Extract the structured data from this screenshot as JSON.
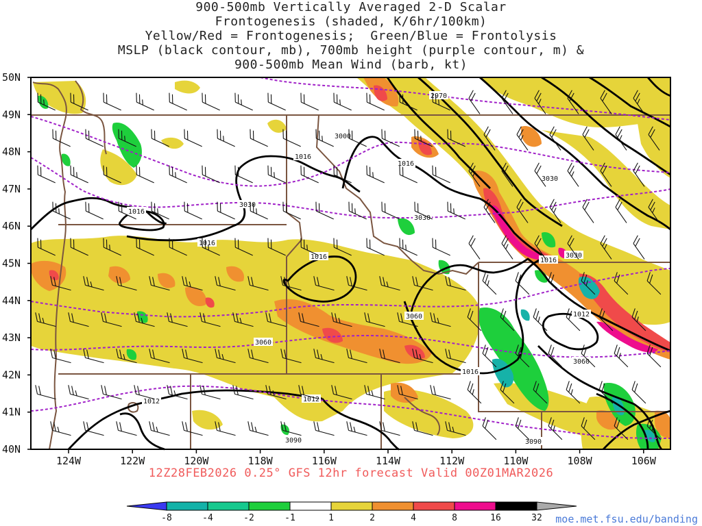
{
  "title_lines": [
    "900-500mb Vertically Averaged 2-D Scalar",
    "Frontogenesis (shaded, K/6hr/100km)",
    "Yellow/Red = Frontogenesis;  Green/Blue = Frontolysis",
    "MSLP (black contour, mb), 700mb height (purple contour, m) &",
    "900-500mb Mean Wind (barb, kt)"
  ],
  "footer": "12Z28FEB2026 0.25° GFS 12hr forecast Valid 00Z01MAR2026",
  "credit": "moe.met.fsu.edu/banding",
  "axes": {
    "lat_labels": [
      "50N",
      "49N",
      "48N",
      "47N",
      "46N",
      "45N",
      "44N",
      "43N",
      "42N",
      "41N",
      "40N"
    ],
    "lon_labels": [
      "124W",
      "122W",
      "120W",
      "118W",
      "116W",
      "114W",
      "112W",
      "110W",
      "108W",
      "106W"
    ]
  },
  "mslp_labels": [
    "1016",
    "1016",
    "1016",
    "1016",
    "1016",
    "1016",
    "1012",
    "1012",
    "1012"
  ],
  "height_labels": [
    "2970",
    "3000",
    "3030",
    "3030",
    "3030",
    "3060",
    "3060",
    "3060",
    "3090",
    "3090"
  ],
  "colorbar": {
    "ticks": [
      "-8",
      "-4",
      "-2",
      "-1",
      "1",
      "2",
      "4",
      "8",
      "16",
      "32"
    ],
    "colors": [
      "#3a3af0",
      "#13b2a8",
      "#16c98e",
      "#1ecf3c",
      "#ffffff",
      "#e6d43a",
      "#f09030",
      "#f04a4a",
      "#ee0d8d",
      "#000000",
      "#aaaaaa"
    ]
  },
  "colors": {
    "mslp": "#000000",
    "height": "#a020c8",
    "borders": "#7a5540",
    "yellow": "#e6d43a",
    "orange": "#f09030",
    "red": "#f04a4a",
    "magenta": "#ee0d8d",
    "green": "#1ecf3c",
    "teal": "#16b2a8"
  }
}
